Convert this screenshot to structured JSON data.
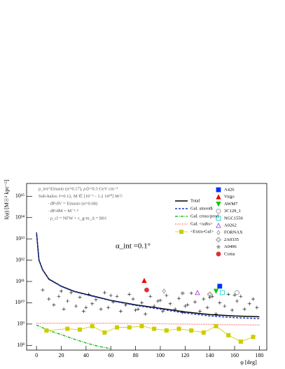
{
  "chart_data": {
    "type": "line",
    "xlabel": "φ [deg]",
    "ylabel": "I(φ) [M☉² kpc⁻⁵]",
    "xlim": [
      -8,
      186
    ],
    "xticks": [
      0,
      20,
      40,
      60,
      80,
      100,
      120,
      140,
      160,
      180
    ],
    "ylim": [
      60000000.0,
      4000000000000000.0
    ],
    "log_y": true,
    "yticks": [
      {
        "value": 100000000.0,
        "label": "10⁸"
      },
      {
        "value": 1000000000.0,
        "label": "10⁹"
      },
      {
        "value": 10000000000.0,
        "label": "10¹⁰"
      },
      {
        "value": 100000000000.0,
        "label": "10¹¹"
      },
      {
        "value": 1000000000000.0,
        "label": "10¹²"
      },
      {
        "value": 10000000000000.0,
        "label": "10¹³"
      },
      {
        "value": 100000000000000.0,
        "label": "10¹⁴"
      },
      {
        "value": 1000000000000000.0,
        "label": "10¹⁵"
      }
    ],
    "annotations": [
      "ρ_tot=Einasto (α=0.17), ρ⊙=0.3 GeV cm⁻³",
      "Sub-halos: f=0.12, M ∈ [10⁻⁶ - 1.2 10¹⁰] M☉",
      "· dP/dV = Einasto (α=0.68)",
      "· dP/dM = M⁻¹·⁹",
      "· ρ_cl = NFW + c_g-m_Δ = B01"
    ],
    "alpha_label": "α_int =0.1°",
    "series": [
      {
        "name": "Total",
        "color": "#000000",
        "style": "solid",
        "x": [
          0,
          2,
          5,
          10,
          20,
          30,
          40,
          60,
          80,
          100,
          120,
          140,
          160,
          180
        ],
        "values": [
          20000000000000.0,
          1000000000000.0,
          350000000000.0,
          130000000000.0,
          60000000000.0,
          35000000000.0,
          25000000000.0,
          13000000000.0,
          8000000000.0,
          5500000000.0,
          3700000000.0,
          2800000000.0,
          2400000000.0,
          2200000000.0
        ]
      },
      {
        "name": "Gal. smooth",
        "color": "#1f3fbf",
        "style": "dashed",
        "x": [
          0,
          2,
          5,
          10,
          20,
          30,
          40,
          60,
          80,
          100,
          120,
          140,
          160,
          180
        ],
        "values": [
          19000000000000.0,
          950000000000.0,
          340000000000.0,
          125000000000.0,
          58000000000.0,
          34000000000.0,
          24000000000.0,
          12500000000.0,
          7500000000.0,
          5000000000.0,
          3300000000.0,
          2400000000.0,
          2000000000.0,
          1800000000.0
        ]
      },
      {
        "name": "Gal. cross-prod.",
        "color": "#22bb22",
        "style": "dashdot",
        "x": [
          0,
          10,
          20,
          30,
          40,
          50,
          60
        ],
        "values": [
          900000000.0,
          500000000.0,
          320000000.0,
          200000000.0,
          130000000.0,
          90000000.0,
          70000000.0
        ]
      },
      {
        "name": "Gal. <subs>",
        "color": "#ff6666",
        "style": "dotted",
        "x": [
          0,
          60,
          120,
          180
        ],
        "values": [
          1100000000.0,
          1100000000.0,
          1000000000.0,
          900000000.0
        ]
      },
      {
        "name": "<Extra-Gal>",
        "color": "#cccc00",
        "style": "squares",
        "x": [
          8,
          25,
          35,
          45,
          55,
          65,
          75,
          85,
          95,
          105,
          115,
          125,
          135,
          145,
          155,
          165,
          175
        ],
        "values": [
          500000000.0,
          600000000.0,
          550000000.0,
          800000000.0,
          400000000.0,
          700000000.0,
          700000000.0,
          800000000.0,
          600000000.0,
          500000000.0,
          600000000.0,
          500000000.0,
          400000000.0,
          800000000.0,
          300000000.0,
          150000000.0,
          250000000.0
        ]
      }
    ],
    "clusters": [
      {
        "name": "A426",
        "color": "#0033ff",
        "symbol": "square",
        "x": 148,
        "y": 60000000000.0
      },
      {
        "name": "Virgo",
        "color": "#ee0000",
        "symbol": "triangle",
        "x": 87,
        "y": 110000000000.0
      },
      {
        "name": "AWM7",
        "color": "#00cc00",
        "symbol": "triangle-down",
        "x": 145,
        "y": 35000000000.0
      },
      {
        "name": "3C129_1",
        "color": "#888888",
        "symbol": "circle-open",
        "x": 162,
        "y": 30000000000.0
      },
      {
        "name": "NGC1550",
        "color": "#00cccc",
        "symbol": "square-open",
        "x": 150,
        "y": 30000000000.0
      },
      {
        "name": "A0262",
        "color": "#9933cc",
        "symbol": "triangle-open",
        "x": 130,
        "y": 30000000000.0
      },
      {
        "name": "FORNAX",
        "color": "#888888",
        "symbol": "diamond-open",
        "x": 103,
        "y": 35000000000.0
      },
      {
        "name": "2A0335",
        "color": "#888888",
        "symbol": "cross-open",
        "x": 140,
        "y": 25000000000.0
      },
      {
        "name": "A0496",
        "color": "#888888",
        "symbol": "star",
        "x": 118,
        "y": 28000000000.0
      },
      {
        "name": "Coma",
        "color": "#dd3333",
        "symbol": "circle",
        "x": 89,
        "y": 40000000000.0
      }
    ],
    "points": {
      "color": "#000000",
      "x": [
        5,
        10,
        14,
        18,
        22,
        25,
        28,
        32,
        35,
        38,
        42,
        45,
        48,
        52,
        55,
        58,
        62,
        65,
        68,
        72,
        75,
        78,
        82,
        85,
        88,
        92,
        95,
        98,
        102,
        105,
        108,
        112,
        115,
        118,
        122,
        125,
        128,
        132,
        135,
        138,
        142,
        145,
        148,
        152,
        155,
        158,
        162,
        165,
        168,
        172,
        175,
        178,
        20,
        40,
        60,
        80,
        100,
        120,
        140,
        160
      ],
      "values": [
        40000000000.0,
        15000000000.0,
        8000000000.0,
        20000000000.0,
        5000000000.0,
        12000000000.0,
        30000000000.0,
        7000000000.0,
        18000000000.0,
        4000000000.0,
        25000000000.0,
        9000000000.0,
        14000000000.0,
        5000000000.0,
        30000000000.0,
        6000000000.0,
        11000000000.0,
        20000000000.0,
        4000000000.0,
        8000000000.0,
        25000000000.0,
        15000000000.0,
        5000000000.0,
        10000000000.0,
        3000000000.0,
        20000000000.0,
        7000000000.0,
        12000000000.0,
        4000000000.0,
        22000000000.0,
        9000000000.0,
        5000000000.0,
        16000000000.0,
        3500000000.0,
        8000000000.0,
        28000000000.0,
        11000000000.0,
        4000000000.0,
        15000000000.0,
        6000000000.0,
        20000000000.0,
        3000000000.0,
        10000000000.0,
        7000000000.0,
        25000000000.0,
        4500000000.0,
        12000000000.0,
        20000000000.0,
        5000000000.0,
        9000000000.0,
        15000000000.0,
        6000000000.0,
        35000000000.0,
        6000000000.0,
        22000000000.0,
        4500000000.0,
        13000000000.0,
        7000000000.0,
        18000000000.0,
        23000000000.0
      ]
    }
  }
}
